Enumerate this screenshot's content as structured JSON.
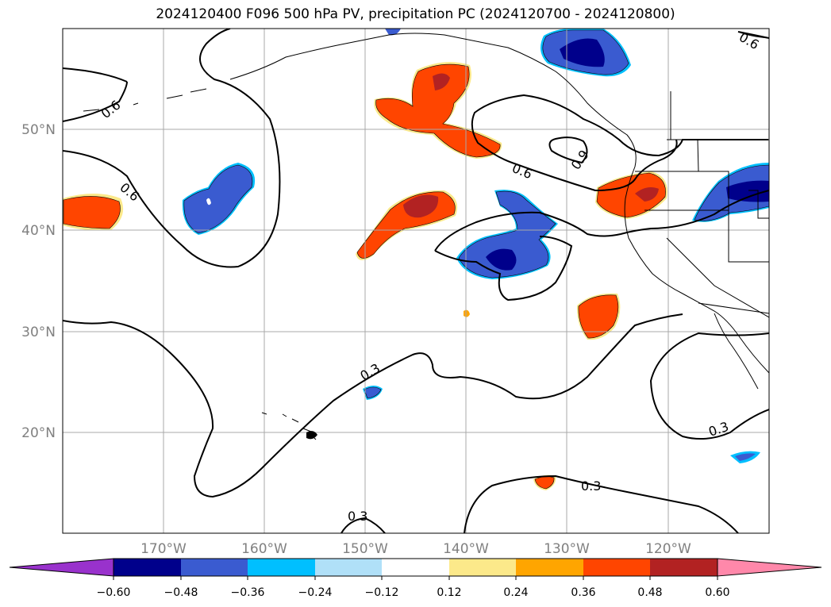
{
  "title": "2024120400 F096 500 hPa PV, precipitation PC (2024120700 - 2024120800)",
  "map": {
    "projection": "equirectangular",
    "lon_range": [
      -180,
      -110
    ],
    "lat_range": [
      10,
      60
    ],
    "lon_ticks": [
      {
        "lon": -170,
        "label": "170°W"
      },
      {
        "lon": -160,
        "label": "160°W"
      },
      {
        "lon": -150,
        "label": "150°W"
      },
      {
        "lon": -140,
        "label": "140°W"
      },
      {
        "lon": -130,
        "label": "130°W"
      },
      {
        "lon": -120,
        "label": "120°W"
      }
    ],
    "lat_ticks": [
      {
        "lat": 50,
        "label": "50°N"
      },
      {
        "lat": 40,
        "label": "40°N"
      },
      {
        "lat": 30,
        "label": "30°N"
      },
      {
        "lat": 20,
        "label": "20°N"
      }
    ],
    "gridlines": true,
    "contour_labels": [
      "0.6",
      "0.6",
      "0.9",
      "0.6",
      "0.3",
      "0.3",
      "0.3",
      "0.3",
      "0.6"
    ]
  },
  "colorbar": {
    "orientation": "horizontal",
    "extend": "both",
    "under_color": "#9932cc",
    "over_color": "#ff88aa",
    "bins": [
      {
        "color": "#00008b"
      },
      {
        "color": "#3a5bd0"
      },
      {
        "color": "#00bfff"
      },
      {
        "color": "#b0e0f8"
      },
      {
        "color": "#ffffff"
      },
      {
        "color": "#fce98a"
      },
      {
        "color": "#ffa500"
      },
      {
        "color": "#ff4500"
      },
      {
        "color": "#b22222"
      }
    ],
    "tick_labels": [
      "−0.60",
      "−0.48",
      "−0.36",
      "−0.24",
      "−0.12",
      "0.12",
      "0.24",
      "0.36",
      "0.48",
      "0.60"
    ]
  }
}
